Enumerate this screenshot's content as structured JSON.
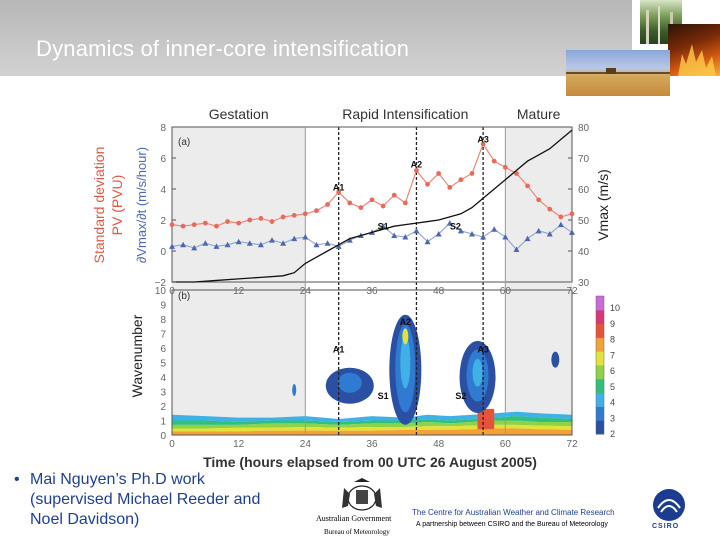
{
  "slide": {
    "title": "Dynamics of inner-core intensification",
    "bullet": "Mai Nguyen’s Ph.D work (supervised Michael Reeder and Noel Davidson)",
    "logos": {
      "gov_line1": "Australian Government",
      "gov_line2": "Bureau of Meteorology",
      "centre": "The Centre for Australian Weather and Climate Research",
      "partnership": "A partnership between CSIRO and the Bureau of Meteorology",
      "csiro": "CSIRO"
    },
    "photo_icons": [
      "forest-photo-icon",
      "fire-photo-icon",
      "farmland-photo-icon"
    ]
  },
  "chart_data": [
    {
      "type": "line",
      "panel": "(a)",
      "phases": [
        "Gestation",
        "Rapid Intensification",
        "Mature"
      ],
      "ylabel_left_1": "Standard deviation",
      "ylabel_left_2": "PV (PVU)",
      "ylabel_left_3": "∂Vmax/∂t (m/s/hour)",
      "ylabel_right": "Vmax (m/s)",
      "ylim_left": [
        -2,
        8
      ],
      "ylim_right": [
        30,
        80
      ],
      "yticks_left": [
        "−2",
        "0",
        "2",
        "4",
        "6",
        "8"
      ],
      "yticks_right": [
        "30",
        "40",
        "50",
        "60",
        "70",
        "80"
      ],
      "xlim": [
        0,
        72
      ],
      "xticks": [
        "0",
        "12",
        "24",
        "36",
        "48",
        "60",
        "72"
      ],
      "vlines": [
        30,
        44,
        56
      ],
      "shaded": [
        [
          0,
          24
        ],
        [
          60,
          72
        ]
      ],
      "annotations": [
        {
          "text": "A1",
          "x": 30,
          "y": 3.9
        },
        {
          "text": "A2",
          "x": 44,
          "y": 5.4
        },
        {
          "text": "A3",
          "x": 56,
          "y": 7.0
        },
        {
          "text": "S1",
          "x": 38,
          "y": 1.4
        },
        {
          "text": "S2",
          "x": 51,
          "y": 1.4
        }
      ],
      "series": [
        {
          "x": [
            0,
            2,
            4,
            6,
            8,
            10,
            12,
            14,
            16,
            18,
            20,
            22,
            24,
            26,
            28,
            30,
            32,
            34,
            36,
            38,
            40,
            42,
            44,
            46,
            48,
            50,
            52,
            54,
            56,
            58,
            60,
            62,
            64,
            66,
            68,
            70,
            72
          ],
          "values": [
            1.7,
            1.6,
            1.7,
            1.8,
            1.6,
            1.9,
            1.8,
            2.0,
            2.1,
            1.9,
            2.2,
            2.3,
            2.4,
            2.6,
            3.0,
            3.8,
            3.1,
            2.8,
            3.3,
            2.9,
            3.6,
            3.1,
            5.2,
            4.3,
            5.0,
            4.1,
            4.6,
            5.0,
            6.9,
            5.8,
            5.4,
            5.0,
            4.2,
            3.3,
            2.7,
            2.2,
            2.4
          ]
        },
        {
          "x": [
            0,
            2,
            4,
            6,
            8,
            10,
            12,
            14,
            16,
            18,
            20,
            22,
            24,
            26,
            28,
            30,
            32,
            34,
            36,
            38,
            40,
            42,
            44,
            46,
            48,
            50,
            52,
            54,
            56,
            58,
            60,
            62,
            64,
            66,
            68,
            70,
            72
          ],
          "values": [
            0.3,
            0.4,
            0.2,
            0.5,
            0.3,
            0.4,
            0.6,
            0.5,
            0.4,
            0.7,
            0.5,
            0.8,
            0.9,
            0.4,
            0.5,
            0.3,
            0.7,
            1.0,
            1.2,
            1.6,
            1.0,
            0.9,
            1.3,
            0.6,
            1.1,
            1.8,
            1.3,
            1.1,
            0.9,
            1.4,
            0.9,
            0.1,
            0.8,
            1.3,
            1.1,
            1.7,
            1.2
          ]
        },
        {
          "x": [
            0,
            4,
            8,
            12,
            16,
            20,
            22,
            24,
            26,
            28,
            30,
            32,
            34,
            36,
            38,
            40,
            42,
            44,
            46,
            48,
            50,
            52,
            54,
            56,
            58,
            60,
            62,
            64,
            66,
            68,
            70,
            72
          ],
          "values": [
            30,
            30,
            30.5,
            31,
            31.5,
            32,
            33,
            36,
            38,
            40,
            42,
            44,
            45,
            46,
            47,
            48,
            48.5,
            49,
            49.5,
            50,
            51,
            52,
            54,
            57,
            60,
            63,
            66,
            69,
            71,
            73,
            76,
            79
          ]
        }
      ]
    },
    {
      "type": "heatmap",
      "panel": "(b)",
      "ylabel": "Wavenumber",
      "xlabel": "Time (hours elapsed from 00 UTC 26 August 2005)",
      "ylim": [
        0,
        10
      ],
      "yticks": [
        "0",
        "1",
        "2",
        "3",
        "4",
        "5",
        "6",
        "7",
        "8",
        "9",
        "10"
      ],
      "xlim": [
        0,
        72
      ],
      "xticks": [
        "0",
        "12",
        "24",
        "36",
        "48",
        "60",
        "72"
      ],
      "colorbar_ticks": [
        "10",
        "9",
        "8",
        "7",
        "6",
        "5",
        "4",
        "3",
        "2"
      ],
      "colors": [
        "#2b4fa3",
        "#2f7bd1",
        "#3fb1e6",
        "#2fbf7f",
        "#8fd24a",
        "#e3e23a",
        "#f3a23a",
        "#e8523b",
        "#d9367a",
        "#c86bd9"
      ],
      "annotations": [
        {
          "text": "A1",
          "x": 30,
          "y": 5.7
        },
        {
          "text": "A2",
          "x": 42,
          "y": 7.6
        },
        {
          "text": "A3",
          "x": 56,
          "y": 5.7
        },
        {
          "text": "S1",
          "x": 38,
          "y": 2.5
        },
        {
          "text": "S2",
          "x": 52,
          "y": 2.5
        }
      ]
    }
  ]
}
